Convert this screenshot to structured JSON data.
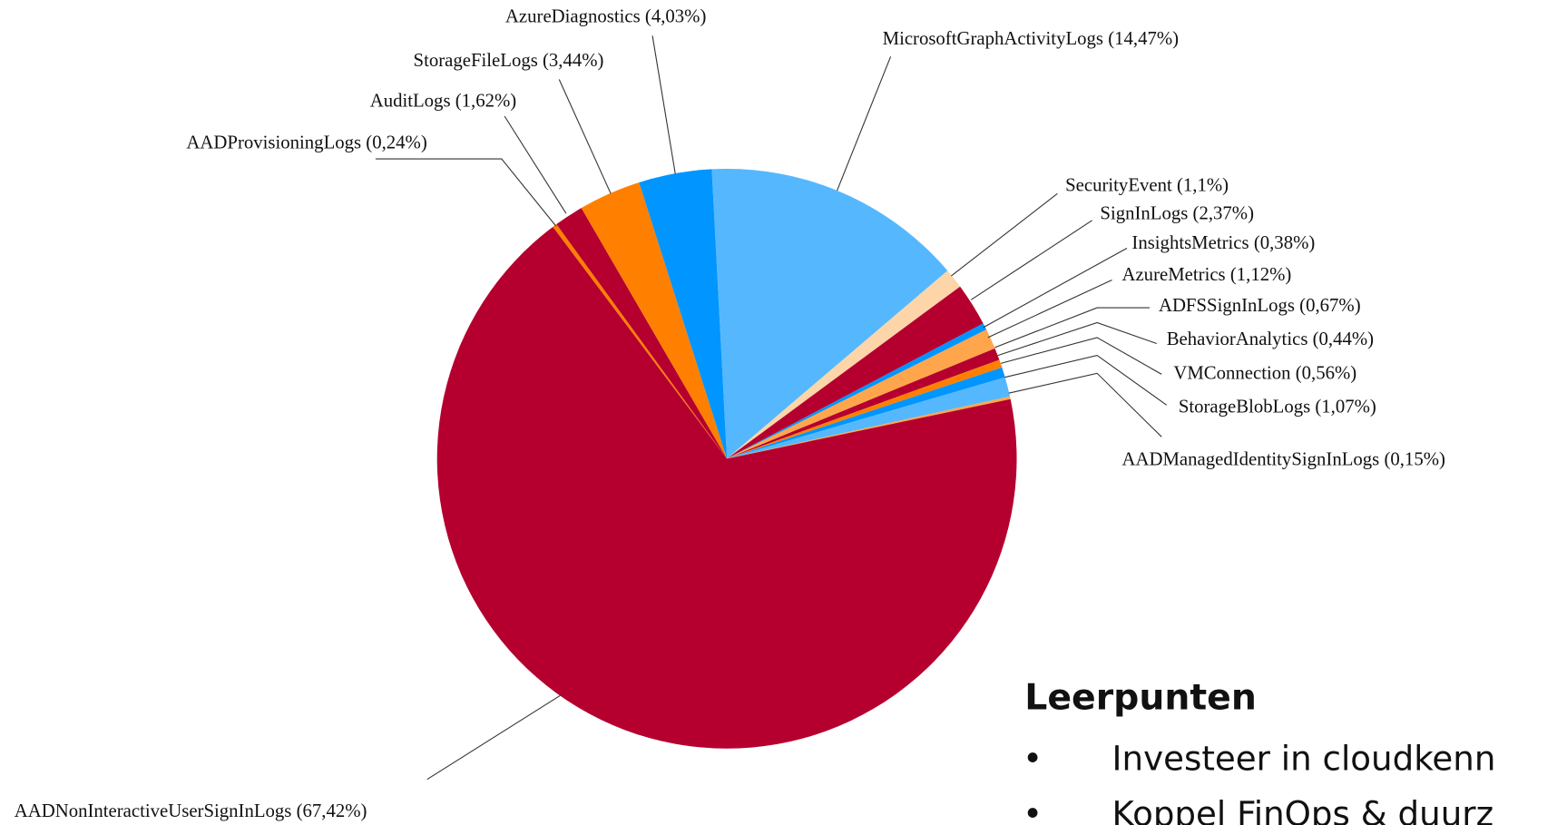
{
  "chart_data": {
    "type": "pie",
    "categories": [
      "MicrosoftGraphActivityLogs",
      "SecurityEvent",
      "SignInLogs",
      "InsightsMetrics",
      "AzureMetrics",
      "ADFSSignInLogs",
      "BehaviorAnalytics",
      "VMConnection",
      "StorageBlobLogs",
      "AADManagedIdentitySignInLogs",
      "AADNonInteractiveUserSignInLogs",
      "AADProvisioningLogs",
      "AuditLogs",
      "StorageFileLogs",
      "AzureDiagnostics"
    ],
    "values": [
      14.47,
      1.1,
      2.37,
      0.38,
      1.12,
      0.67,
      0.44,
      0.56,
      1.07,
      0.15,
      67.42,
      0.24,
      1.62,
      3.44,
      4.03
    ],
    "value_labels": [
      "(14,47%)",
      "(1,1%)",
      "(2,37%)",
      "(0,38%)",
      "(1,12%)",
      "(0,67%)",
      "(0,44%)",
      "(0,56%)",
      "(1,07%)",
      "(0,15%)",
      "(67,42%)",
      "(0,24%)",
      "(1,62%)",
      "(3,44%)",
      "(4,03%)"
    ],
    "colors": [
      "#55b8ff",
      "#fdd5a8",
      "#b5002f",
      "#0095ff",
      "#ffa64d",
      "#b5002f",
      "#ff8000",
      "#0095ff",
      "#55b8ff",
      "#ffa64d",
      "#b5002f",
      "#ff8000",
      "#b5002f",
      "#ff8000",
      "#0095ff"
    ]
  },
  "text_box": {
    "heading": "Leerpunten",
    "bullets": [
      "Investeer in cloudkenn",
      "Koppel FinOps & duurz"
    ]
  }
}
